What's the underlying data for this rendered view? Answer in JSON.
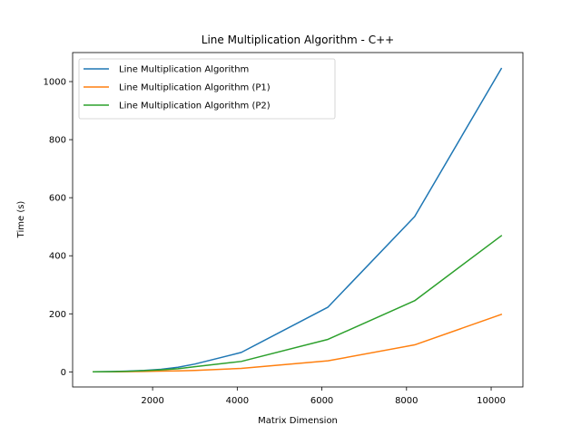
{
  "chart_data": {
    "type": "line",
    "title": "Line Multiplication Algorithm - C++",
    "xlabel": "Matrix Dimension",
    "ylabel": "Time (s)",
    "xlim": [
      110,
      10750
    ],
    "ylim": [
      -52,
      1100
    ],
    "xticks": [
      2000,
      4000,
      6000,
      8000,
      10000
    ],
    "yticks": [
      0,
      200,
      400,
      600,
      800,
      1000
    ],
    "grid": false,
    "legend_position": "top-left",
    "x": [
      600,
      1000,
      1400,
      1800,
      2200,
      2600,
      3000,
      4096,
      6144,
      8192,
      10240
    ],
    "series": [
      {
        "name": "Line Multiplication Algorithm",
        "color": "#1f77b4",
        "values": [
          0.2,
          1,
          2.5,
          5,
          9,
          16,
          27,
          67,
          223,
          535,
          1045
        ]
      },
      {
        "name": "Line Multiplication Algorithm (P1)",
        "color": "#ff7f0e",
        "values": [
          0.1,
          0.3,
          0.8,
          1.5,
          2.5,
          3.5,
          5,
          12,
          38,
          93,
          198
        ]
      },
      {
        "name": "Line Multiplication Algorithm (P2)",
        "color": "#2ca02c",
        "values": [
          0.2,
          0.8,
          2,
          4,
          7,
          11,
          18,
          36,
          112,
          245,
          469
        ]
      }
    ]
  }
}
